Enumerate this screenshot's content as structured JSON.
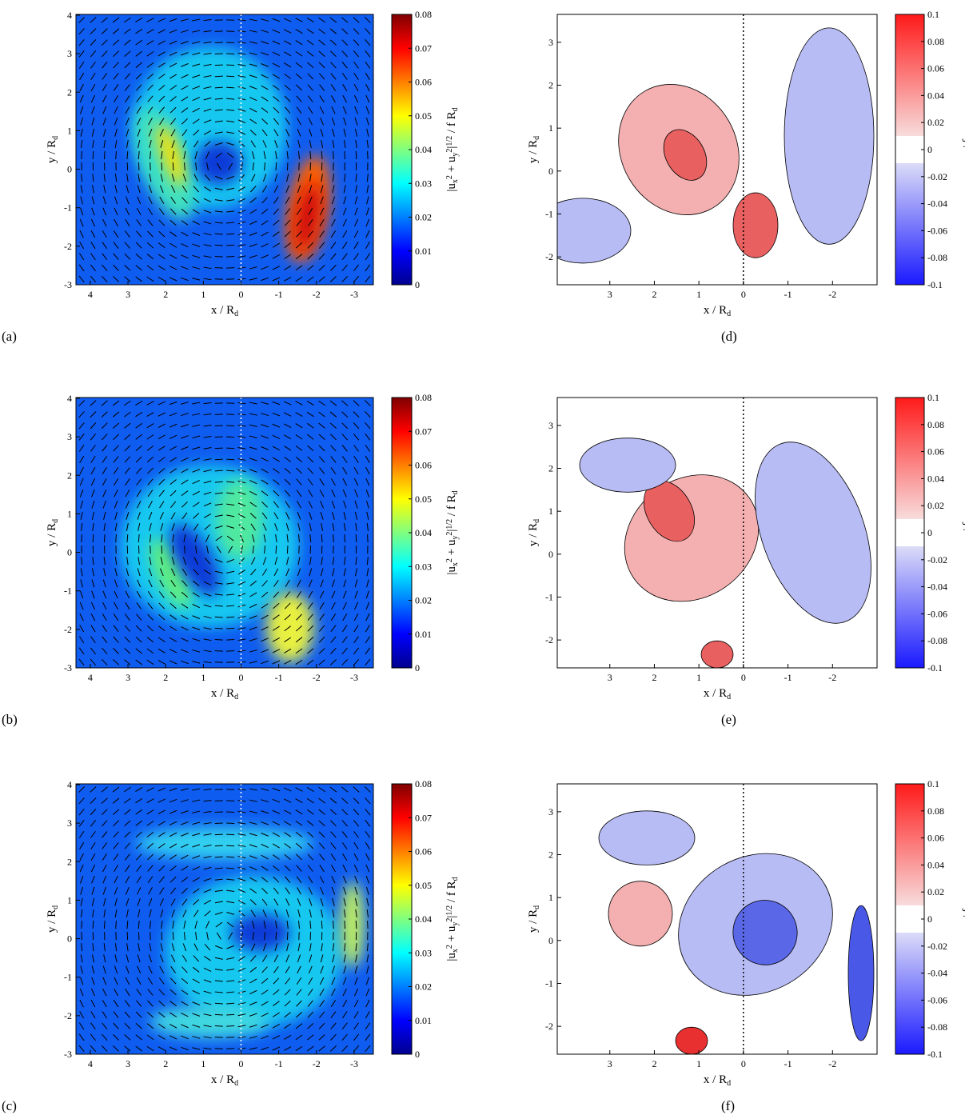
{
  "chart_data": [
    {
      "type": "heatmap",
      "label": "(a)",
      "colormap": "jet",
      "xlabel": [
        {
          "text": "x / R"
        },
        {
          "text": "d",
          "pos": "sub"
        }
      ],
      "ylabel": [
        {
          "text": "y / R"
        },
        {
          "text": "d",
          "pos": "sub"
        }
      ],
      "colorbar_label": [
        {
          "text": "|u"
        },
        {
          "text": "x",
          "pos": "sub"
        },
        {
          "text": "2",
          "pos": "sup"
        },
        {
          "text": " + u"
        },
        {
          "text": "y",
          "pos": "sub"
        },
        {
          "text": "2",
          "pos": "sup"
        },
        {
          "text": "|"
        },
        {
          "text": "1/2",
          "pos": "sup"
        },
        {
          "text": " / f R"
        },
        {
          "text": "d",
          "pos": "sub"
        }
      ],
      "xlim": [
        4.38,
        -3.51
      ],
      "xticks": [
        4,
        3,
        2,
        1,
        0,
        -1,
        -2,
        -3
      ],
      "ylim": [
        -3,
        4.02
      ],
      "yticks": [
        -3,
        -2,
        -1,
        0,
        1,
        2,
        3,
        4
      ],
      "clim": [
        0,
        0.08
      ],
      "cticks": [
        0,
        0.01,
        0.02,
        0.03,
        0.04,
        0.05,
        0.06,
        0.07,
        0.08
      ]
    },
    {
      "type": "heatmap",
      "label": "(b)",
      "colormap": "jet",
      "xlabel": [
        {
          "text": "x / R"
        },
        {
          "text": "d",
          "pos": "sub"
        }
      ],
      "ylabel": [
        {
          "text": "y / R"
        },
        {
          "text": "d",
          "pos": "sub"
        }
      ],
      "colorbar_label": [
        {
          "text": "|u"
        },
        {
          "text": "x",
          "pos": "sub"
        },
        {
          "text": "2",
          "pos": "sup"
        },
        {
          "text": " + u"
        },
        {
          "text": "y",
          "pos": "sub"
        },
        {
          "text": "2",
          "pos": "sup"
        },
        {
          "text": "|"
        },
        {
          "text": "1/2",
          "pos": "sup"
        },
        {
          "text": " / f R"
        },
        {
          "text": "d",
          "pos": "sub"
        }
      ],
      "xlim": [
        4.38,
        -3.51
      ],
      "xticks": [
        4,
        3,
        2,
        1,
        0,
        -1,
        -2,
        -3
      ],
      "ylim": [
        -3,
        4.02
      ],
      "yticks": [
        -3,
        -2,
        -1,
        0,
        1,
        2,
        3,
        4
      ],
      "clim": [
        0,
        0.08
      ],
      "cticks": [
        0,
        0.01,
        0.02,
        0.03,
        0.04,
        0.05,
        0.06,
        0.07,
        0.08
      ]
    },
    {
      "type": "heatmap",
      "label": "(c)",
      "colormap": "jet",
      "xlabel": [
        {
          "text": "x / R"
        },
        {
          "text": "d",
          "pos": "sub"
        }
      ],
      "ylabel": [
        {
          "text": "y / R"
        },
        {
          "text": "d",
          "pos": "sub"
        }
      ],
      "colorbar_label": [
        {
          "text": "|u"
        },
        {
          "text": "x",
          "pos": "sub"
        },
        {
          "text": "2",
          "pos": "sup"
        },
        {
          "text": " + u"
        },
        {
          "text": "y",
          "pos": "sub"
        },
        {
          "text": "2",
          "pos": "sup"
        },
        {
          "text": "|"
        },
        {
          "text": "1/2",
          "pos": "sup"
        },
        {
          "text": " / f R"
        },
        {
          "text": "d",
          "pos": "sub"
        }
      ],
      "xlim": [
        4.38,
        -3.51
      ],
      "xticks": [
        4,
        3,
        2,
        1,
        0,
        -1,
        -2,
        -3
      ],
      "ylim": [
        -3,
        4.02
      ],
      "yticks": [
        -3,
        -2,
        -1,
        0,
        1,
        2,
        3,
        4
      ],
      "clim": [
        0,
        0.08
      ],
      "cticks": [
        0,
        0.01,
        0.02,
        0.03,
        0.04,
        0.05,
        0.06,
        0.07,
        0.08
      ]
    },
    {
      "type": "contour",
      "label": "(d)",
      "colormap": "bwr",
      "xlabel": [
        {
          "text": "x / R"
        },
        {
          "text": "d",
          "pos": "sub"
        }
      ],
      "ylabel": [
        {
          "text": "y / R"
        },
        {
          "text": "d",
          "pos": "sub"
        }
      ],
      "colorbar_label": [
        {
          "text": "ω / f"
        }
      ],
      "xlim": [
        4.18,
        -3.0
      ],
      "xticks": [
        3,
        2,
        1,
        0,
        -1,
        -2
      ],
      "ylim": [
        -2.65,
        3.65
      ],
      "yticks": [
        -2,
        -1,
        0,
        1,
        2,
        3
      ],
      "clim": [
        -0.1,
        0.1
      ],
      "cticks": [
        -0.1,
        -0.08,
        -0.06,
        -0.04,
        -0.02,
        0,
        0.02,
        0.04,
        0.06,
        0.08,
        0.1
      ]
    },
    {
      "type": "contour",
      "label": "(e)",
      "colormap": "bwr",
      "xlabel": [
        {
          "text": "x / R"
        },
        {
          "text": "d",
          "pos": "sub"
        }
      ],
      "ylabel": [
        {
          "text": "y / R"
        },
        {
          "text": "d",
          "pos": "sub"
        }
      ],
      "colorbar_label": [
        {
          "text": "ω / f"
        }
      ],
      "xlim": [
        4.18,
        -3.0
      ],
      "xticks": [
        3,
        2,
        1,
        0,
        -1,
        -2
      ],
      "ylim": [
        -2.65,
        3.65
      ],
      "yticks": [
        -2,
        -1,
        0,
        1,
        2,
        3
      ],
      "clim": [
        -0.1,
        0.1
      ],
      "cticks": [
        -0.1,
        -0.08,
        -0.06,
        -0.04,
        -0.02,
        0,
        0.02,
        0.04,
        0.06,
        0.08,
        0.1
      ]
    },
    {
      "type": "contour",
      "label": "(f)",
      "colormap": "bwr",
      "xlabel": [
        {
          "text": "x / R"
        },
        {
          "text": "d",
          "pos": "sub"
        }
      ],
      "ylabel": [
        {
          "text": "y / R"
        },
        {
          "text": "d",
          "pos": "sub"
        }
      ],
      "colorbar_label": [
        {
          "text": "ω / f"
        }
      ],
      "xlim": [
        4.18,
        -3.0
      ],
      "xticks": [
        3,
        2,
        1,
        0,
        -1,
        -2
      ],
      "ylim": [
        -2.65,
        3.65
      ],
      "yticks": [
        -2,
        -1,
        0,
        1,
        2,
        3
      ],
      "clim": [
        -0.1,
        0.1
      ],
      "cticks": [
        -0.1,
        -0.08,
        -0.06,
        -0.04,
        -0.02,
        0,
        0.02,
        0.04,
        0.06,
        0.08,
        0.1
      ]
    }
  ]
}
